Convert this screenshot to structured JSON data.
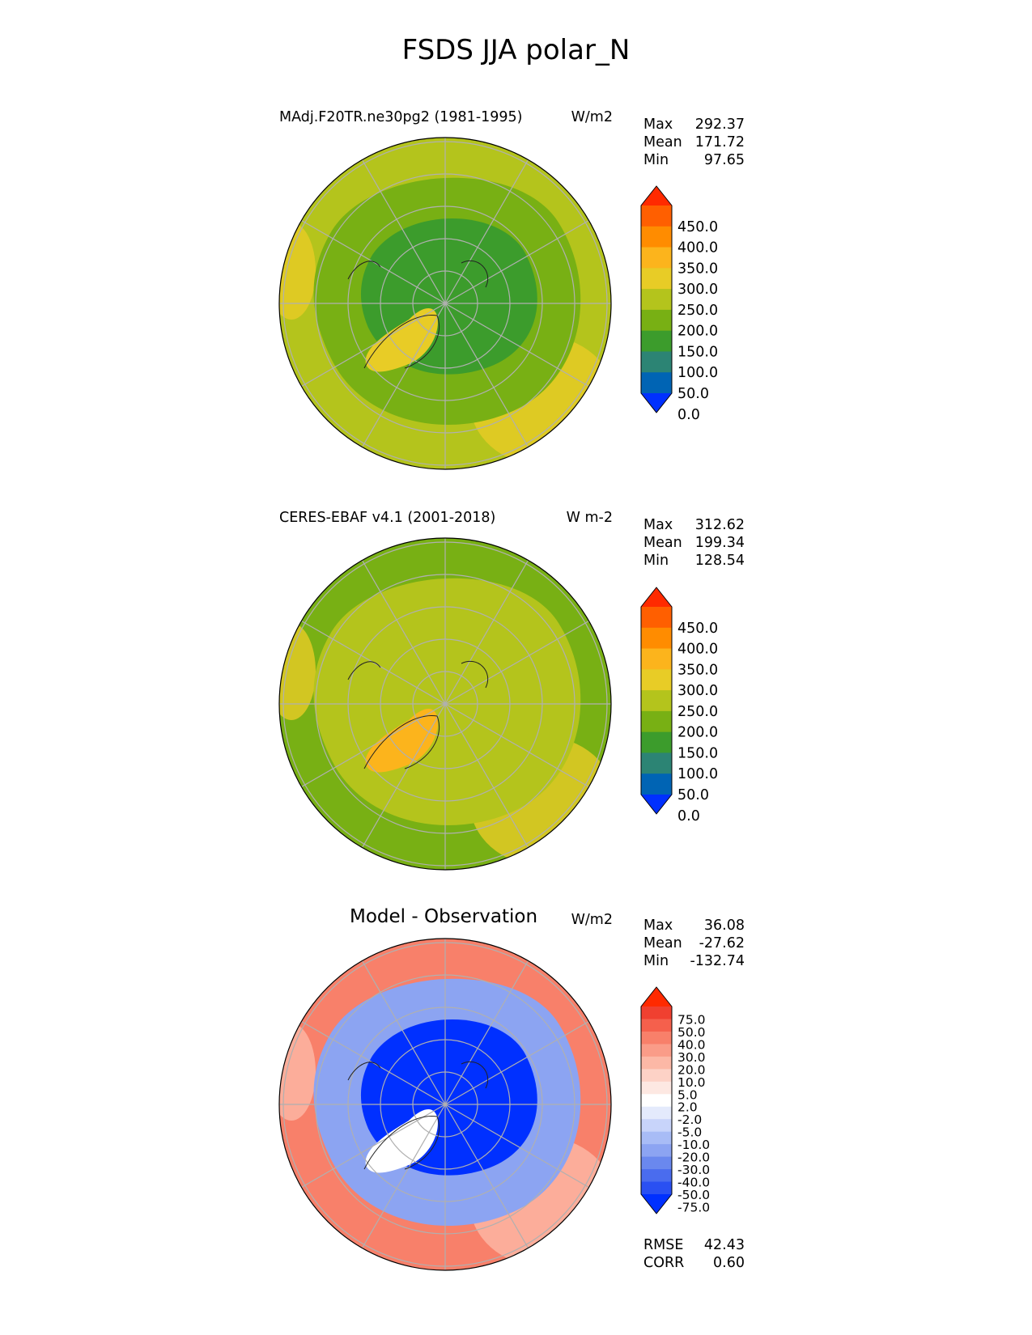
{
  "title": "FSDS JJA polar_N",
  "panels": [
    {
      "title": "MAdj.F20TR.ne30pg2 (1981-1995)",
      "units": "W/m2",
      "stats": {
        "max_label": "Max",
        "max": "292.37",
        "mean_label": "Mean",
        "mean": "171.72",
        "min_label": "Min",
        "min": "97.65"
      },
      "colorbar": {
        "labels": [
          "450.0",
          "400.0",
          "350.0",
          "300.0",
          "250.0",
          "200.0",
          "150.0",
          "100.0",
          "50.0",
          "0.0"
        ],
        "colors": [
          "#ff2a00",
          "#ff5f00",
          "#ff8c00",
          "#fcb41c",
          "#e8cc26",
          "#b4c41c",
          "#78b014",
          "#3c9c2c",
          "#2c8474",
          "#0064b4",
          "#0030ff"
        ]
      }
    },
    {
      "title": "CERES-EBAF v4.1 (2001-2018)",
      "units": "W m-2",
      "stats": {
        "max_label": "Max",
        "max": "312.62",
        "mean_label": "Mean",
        "mean": "199.34",
        "min_label": "Min",
        "min": "128.54"
      },
      "colorbar": {
        "labels": [
          "450.0",
          "400.0",
          "350.0",
          "300.0",
          "250.0",
          "200.0",
          "150.0",
          "100.0",
          "50.0",
          "0.0"
        ],
        "colors": [
          "#ff2a00",
          "#ff5f00",
          "#ff8c00",
          "#fcb41c",
          "#e8cc26",
          "#b4c41c",
          "#78b014",
          "#3c9c2c",
          "#2c8474",
          "#0064b4",
          "#0030ff"
        ]
      }
    },
    {
      "title": "Model - Observation",
      "units": "W/m2",
      "stats": {
        "max_label": "Max",
        "max": "36.08",
        "mean_label": "Mean",
        "mean": "-27.62",
        "min_label": "Min",
        "min": "-132.74"
      },
      "colorbar": {
        "labels": [
          "75.0",
          "50.0",
          "40.0",
          "30.0",
          "20.0",
          "10.0",
          "5.0",
          "2.0",
          "-2.0",
          "-5.0",
          "-10.0",
          "-20.0",
          "-30.0",
          "-40.0",
          "-50.0",
          "-75.0"
        ],
        "colors": [
          "#ff2a00",
          "#f04030",
          "#f5604c",
          "#f8806a",
          "#fa9c88",
          "#fcb8a6",
          "#fdd2c6",
          "#fde8e2",
          "#ffffff",
          "#e4eafc",
          "#c8d4fa",
          "#a8bcf6",
          "#8ca4f2",
          "#6a88ee",
          "#4a6cee",
          "#2a50f2",
          "#0030ff"
        ]
      },
      "rmse_label": "RMSE",
      "rmse": "42.43",
      "corr_label": "CORR",
      "corr": "0.60"
    }
  ],
  "map_colors": {
    "p0": {
      "base": "#b4c41c",
      "mid": "#78b014",
      "inner": "#3c9c2c",
      "greenland": "#e8cc26",
      "edge": "#e8cc26"
    },
    "p1": {
      "base": "#78b014",
      "mid": "#b4c41c",
      "inner": "#b4c41c",
      "greenland": "#fcb41c",
      "edge": "#e8cc26"
    },
    "p2": {
      "base": "#f8806a",
      "mid": "#8ca4f2",
      "inner": "#0030ff",
      "greenland": "#ffffff",
      "edge": "#fcb8a6"
    }
  }
}
